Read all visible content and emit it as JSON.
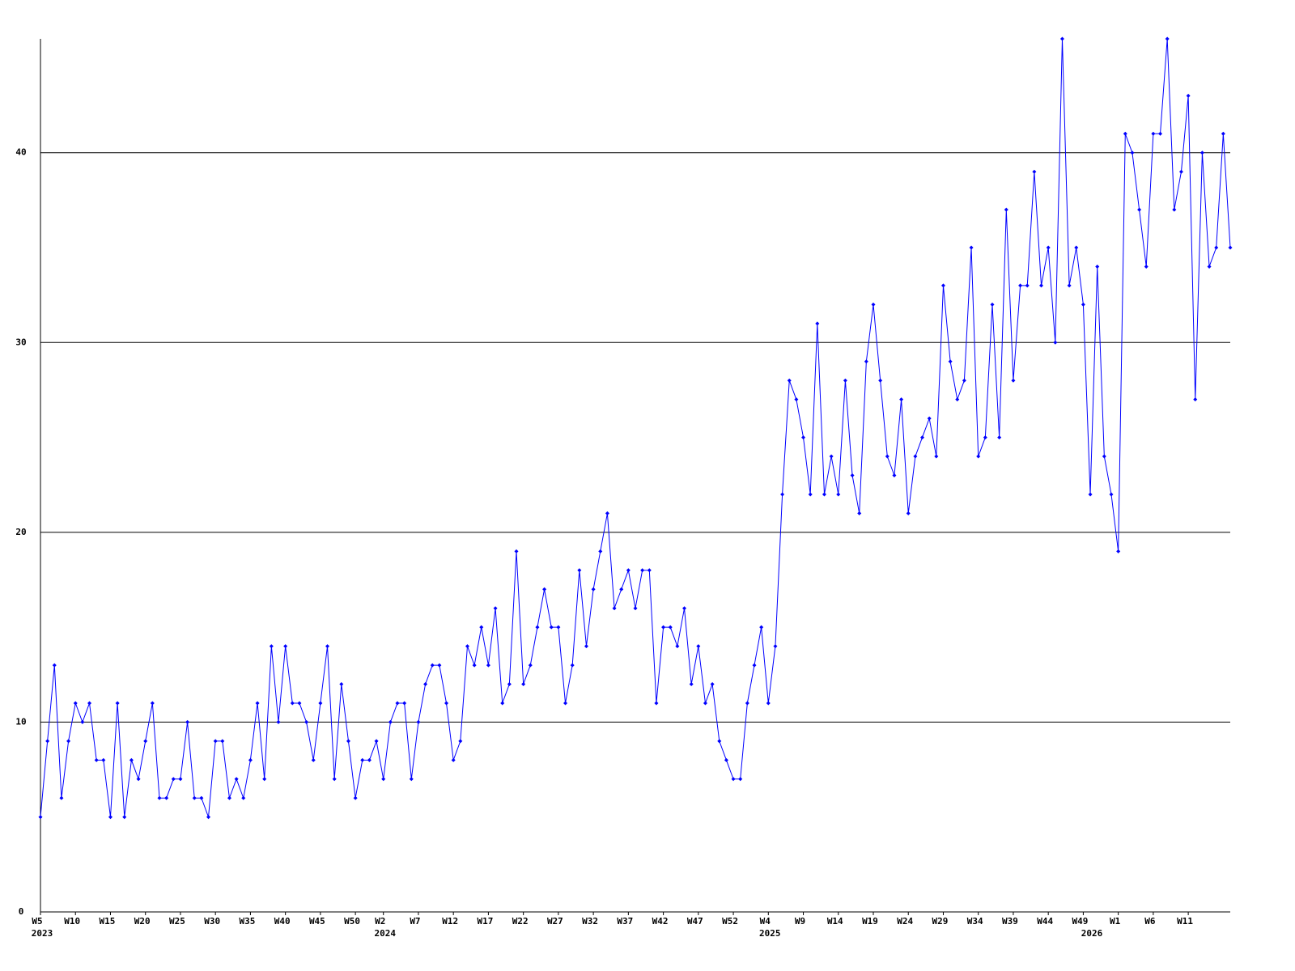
{
  "chart_data": {
    "type": "line",
    "categories": [
      "W5",
      null,
      null,
      null,
      null,
      "W10",
      null,
      null,
      null,
      null,
      "W15",
      null,
      null,
      null,
      null,
      "W20",
      null,
      null,
      null,
      null,
      "W25",
      null,
      null,
      null,
      null,
      "W30",
      null,
      null,
      null,
      null,
      "W35",
      null,
      null,
      null,
      null,
      "W40",
      null,
      null,
      null,
      null,
      "W45",
      null,
      null,
      null,
      null,
      "W50",
      null,
      null,
      null,
      "W2",
      null,
      null,
      null,
      null,
      "W7",
      null,
      null,
      null,
      null,
      "W12",
      null,
      null,
      null,
      null,
      "W17",
      null,
      null,
      null,
      null,
      "W22",
      null,
      null,
      null,
      null,
      "W27",
      null,
      null,
      null,
      null,
      "W32",
      null,
      null,
      null,
      null,
      "W37",
      null,
      null,
      null,
      null,
      "W42",
      null,
      null,
      null,
      null,
      "W47",
      null,
      null,
      null,
      null,
      "W52",
      null,
      null,
      null,
      null,
      "W4",
      null,
      null,
      null,
      null,
      "W9",
      null,
      null,
      null,
      null,
      "W14",
      null,
      null,
      null,
      null,
      "W19",
      null,
      null,
      null,
      null,
      "W24",
      null,
      null,
      null,
      null,
      "W29",
      null,
      null,
      null,
      null,
      "W34",
      null,
      null,
      null,
      null,
      "W39",
      null,
      null,
      null,
      null,
      "W44",
      null,
      null,
      null,
      null,
      "W49",
      null,
      null,
      null,
      null,
      "W1",
      null,
      null,
      null,
      null,
      "W6",
      null,
      null,
      null,
      null,
      "W11",
      null,
      null,
      null,
      null,
      null,
      null
    ],
    "years": [
      "2023",
      null,
      null,
      null,
      null,
      null,
      null,
      null,
      null,
      null,
      null,
      null,
      null,
      null,
      null,
      null,
      null,
      null,
      null,
      null,
      null,
      null,
      null,
      null,
      null,
      null,
      null,
      null,
      null,
      null,
      null,
      null,
      null,
      null,
      null,
      null,
      null,
      null,
      null,
      null,
      null,
      null,
      null,
      null,
      null,
      null,
      null,
      null,
      null,
      "2024",
      null,
      null,
      null,
      null,
      null,
      null,
      null,
      null,
      null,
      null,
      null,
      null,
      null,
      null,
      null,
      null,
      null,
      null,
      null,
      null,
      null,
      null,
      null,
      null,
      null,
      null,
      null,
      null,
      null,
      null,
      null,
      null,
      null,
      null,
      null,
      null,
      null,
      null,
      null,
      null,
      null,
      null,
      null,
      null,
      null,
      null,
      null,
      null,
      null,
      null,
      null,
      null,
      null,
      null,
      "2025",
      null,
      null,
      null,
      null,
      null,
      null,
      null,
      null,
      null,
      null,
      null,
      null,
      null,
      null,
      null,
      null,
      null,
      null,
      null,
      null,
      null,
      null,
      null,
      null,
      null,
      null,
      null,
      null,
      null,
      null,
      null,
      null,
      null,
      null,
      null,
      null,
      null,
      null,
      null,
      null,
      null,
      null,
      null,
      null,
      null,
      "2026",
      null,
      null,
      null,
      null,
      null,
      null,
      null,
      null,
      null,
      null,
      null,
      null,
      null,
      null,
      null,
      null
    ],
    "series": [
      {
        "color": "#0000ff",
        "values": [
          5,
          9,
          13,
          6,
          9,
          11,
          10,
          11,
          8,
          8,
          5,
          11,
          5,
          8,
          7,
          9,
          11,
          6,
          6,
          7,
          7,
          10,
          6,
          6,
          5,
          9,
          9,
          6,
          7,
          6,
          8,
          11,
          7,
          14,
          10,
          14,
          11,
          11,
          10,
          8,
          11,
          14,
          7,
          12,
          9,
          6,
          8,
          8,
          9,
          7,
          10,
          11,
          11,
          7,
          10,
          12,
          13,
          13,
          11,
          8,
          9,
          14,
          13,
          15,
          13,
          16,
          11,
          12,
          19,
          12,
          13,
          15,
          17,
          15,
          15,
          11,
          13,
          18,
          14,
          17,
          19,
          21,
          16,
          17,
          18,
          16,
          18,
          18,
          11,
          15,
          15,
          14,
          16,
          12,
          14,
          11,
          12,
          9,
          8,
          7,
          7,
          11,
          13,
          15,
          11,
          14,
          22,
          28,
          27,
          25,
          22,
          31,
          22,
          24,
          22,
          28,
          23,
          21,
          29,
          32,
          28,
          24,
          23,
          27,
          21,
          24,
          25,
          26,
          24,
          33,
          29,
          27,
          28,
          35,
          24,
          25,
          32,
          25,
          37,
          28,
          33,
          33,
          39,
          33,
          35,
          30,
          46,
          33,
          35,
          32,
          22,
          34,
          24,
          22,
          19,
          41,
          40,
          37,
          34,
          41,
          41,
          46,
          37,
          39,
          43,
          27,
          40,
          34,
          35,
          41,
          35
        ]
      }
    ],
    "ylim": [
      0,
      46
    ],
    "yticks": [
      0,
      10,
      20,
      30,
      40
    ],
    "grid": true
  }
}
